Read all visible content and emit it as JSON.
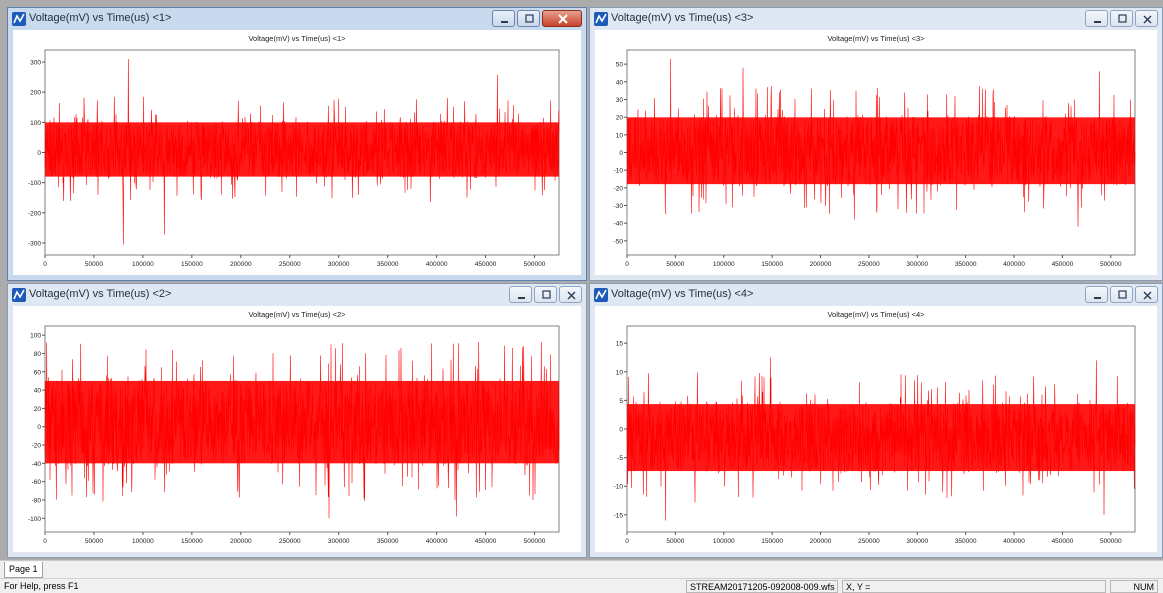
{
  "windows": [
    {
      "title": "Voltage(mV) vs Time(us) <1>",
      "plot_title": "Voltage(mV) vs Time(us) <1>",
      "active": true
    },
    {
      "title": "Voltage(mV) vs Time(us) <3>",
      "plot_title": "Voltage(mV) vs Time(us) <3>",
      "active": false
    },
    {
      "title": "Voltage(mV) vs Time(us) <2>",
      "plot_title": "Voltage(mV) vs Time(us) <2>",
      "active": false
    },
    {
      "title": "Voltage(mV) vs Time(us) <4>",
      "plot_title": "Voltage(mV) vs Time(us) <4>",
      "active": false
    }
  ],
  "tabs": {
    "page1": "Page 1"
  },
  "status": {
    "help": "For Help, press F1",
    "file": "STREAM20171205-092008-009.wfs",
    "coords": "X, Y =",
    "num": "NUM"
  },
  "colors": {
    "trace": "#ff0000",
    "plot_bg": "#ffffff",
    "frame": "#808080"
  },
  "chart_data": [
    {
      "type": "line",
      "title": "Voltage(mV) vs Time(us) <1>",
      "xlabel": "",
      "ylabel": "",
      "xlim": [
        0,
        525000
      ],
      "ylim": [
        -340,
        340
      ],
      "xticks": [
        0,
        50000,
        100000,
        150000,
        200000,
        250000,
        300000,
        350000,
        400000,
        450000,
        500000
      ],
      "yticks": [
        -300,
        -200,
        -100,
        0,
        100,
        200,
        300
      ],
      "series": [
        {
          "color": "#ff0000",
          "band": [
            -90,
            110
          ],
          "min": -305,
          "max": 310,
          "description_points": [
            [
              85000,
              310
            ],
            [
              80000,
              -305
            ],
            [
              462000,
              258
            ],
            [
              122000,
              -272
            ]
          ]
        }
      ],
      "grid": false
    },
    {
      "type": "line",
      "title": "Voltage(mV) vs Time(us) <3>",
      "xlabel": "",
      "ylabel": "",
      "xlim": [
        0,
        525000
      ],
      "ylim": [
        -58,
        58
      ],
      "xticks": [
        0,
        50000,
        100000,
        150000,
        200000,
        250000,
        300000,
        350000,
        400000,
        450000,
        500000
      ],
      "yticks": [
        -50,
        -40,
        -30,
        -20,
        -10,
        0,
        10,
        20,
        30,
        40,
        50
      ],
      "series": [
        {
          "color": "#ff0000",
          "band": [
            -20,
            22
          ],
          "min": -42,
          "max": 53,
          "description_points": [
            [
              45000,
              53
            ],
            [
              120000,
              48
            ],
            [
              488000,
              46
            ],
            [
              466000,
              -42
            ],
            [
              235000,
              -38
            ]
          ]
        }
      ],
      "grid": false
    },
    {
      "type": "line",
      "title": "Voltage(mV) vs Time(us) <2>",
      "xlabel": "",
      "ylabel": "",
      "xlim": [
        0,
        525000
      ],
      "ylim": [
        -115,
        110
      ],
      "xticks": [
        0,
        50000,
        100000,
        150000,
        200000,
        250000,
        300000,
        350000,
        400000,
        450000,
        500000
      ],
      "yticks": [
        -100,
        -80,
        -60,
        -40,
        -20,
        0,
        20,
        40,
        60,
        80,
        100
      ],
      "series": [
        {
          "color": "#ff0000",
          "band": [
            -45,
            55
          ],
          "min": -100,
          "max": 95,
          "description_points": [
            [
              290000,
              95
            ],
            [
              395000,
              91
            ],
            [
              290000,
              -100
            ],
            [
              420000,
              -98
            ]
          ]
        }
      ],
      "grid": false
    },
    {
      "type": "line",
      "title": "Voltage(mV) vs Time(us) <4>",
      "xlabel": "",
      "ylabel": "",
      "xlim": [
        0,
        525000
      ],
      "ylim": [
        -18,
        18
      ],
      "xticks": [
        0,
        50000,
        100000,
        150000,
        200000,
        250000,
        300000,
        350000,
        400000,
        450000,
        500000
      ],
      "yticks": [
        -15,
        -10,
        -5,
        0,
        5,
        10,
        15
      ],
      "series": [
        {
          "color": "#ff0000",
          "band": [
            -8,
            5
          ],
          "min": -16,
          "max": 12.5,
          "description_points": [
            [
              40000,
              -16
            ],
            [
              148000,
              12.5
            ],
            [
              485000,
              12
            ],
            [
              493000,
              -15
            ]
          ]
        }
      ],
      "grid": false
    }
  ]
}
